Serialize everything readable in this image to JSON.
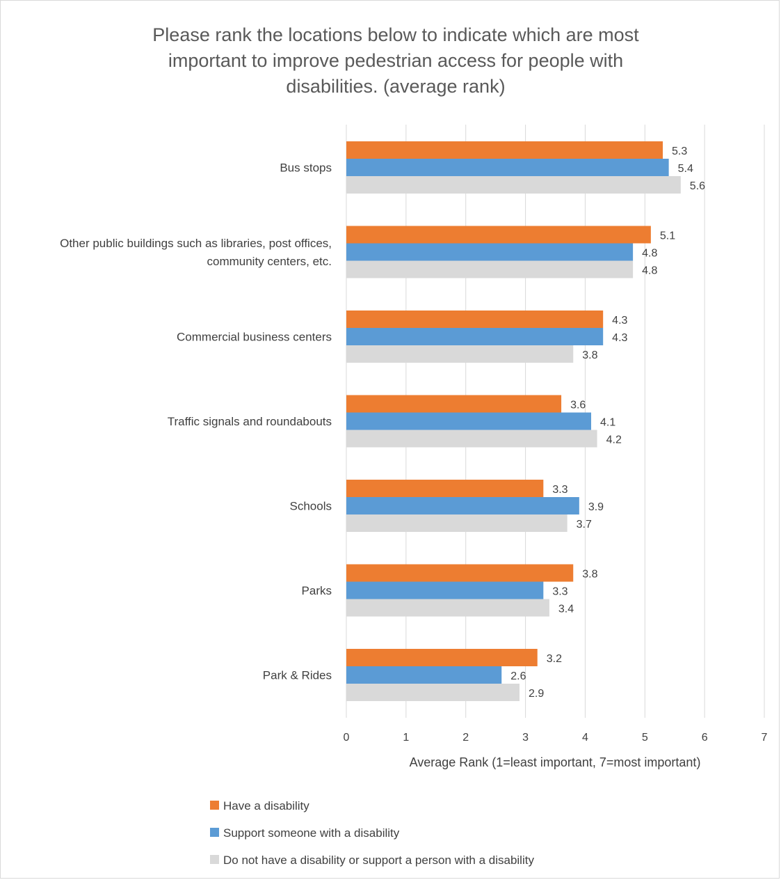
{
  "chart_data": {
    "type": "bar",
    "orientation": "horizontal",
    "title": "Please rank the locations below to indicate which are most important to improve pedestrian access for people with disabilities. (average rank)",
    "title_lines": [
      "Please rank the locations below to indicate which are most",
      "important to improve pedestrian access for people with",
      "disabilities. (average rank)"
    ],
    "xlabel": "Average Rank (1=least important, 7=most important)",
    "ylabel": "",
    "xlim": [
      0,
      7
    ],
    "xticks": [
      "0",
      "1",
      "2",
      "3",
      "4",
      "5",
      "6",
      "7"
    ],
    "grid": true,
    "legend_position": "bottom-left",
    "categories": [
      "Bus stops",
      "Other public buildings such as libraries, post offices, community centers, etc.",
      "Commercial business centers",
      "Traffic signals and roundabouts",
      "Schools",
      "Parks",
      "Park & Rides"
    ],
    "category_lines": [
      [
        "Bus stops"
      ],
      [
        "Other public buildings such as libraries, post offices,",
        "community centers, etc."
      ],
      [
        "Commercial business centers"
      ],
      [
        "Traffic signals and roundabouts"
      ],
      [
        "Schools"
      ],
      [
        "Parks"
      ],
      [
        "Park & Rides"
      ]
    ],
    "series": [
      {
        "name": "Have a disability",
        "color": "#ED7D31",
        "values": [
          5.3,
          5.1,
          4.3,
          3.6,
          3.3,
          3.8,
          3.2
        ],
        "labels": [
          "5.3",
          "5.1",
          "4.3",
          "3.6",
          "3.3",
          "3.8",
          "3.2"
        ]
      },
      {
        "name": "Support someone with a disability",
        "color": "#5B9BD5",
        "values": [
          5.4,
          4.8,
          4.3,
          4.1,
          3.9,
          3.3,
          2.6
        ],
        "labels": [
          "5.4",
          "4.8",
          "4.3",
          "4.1",
          "3.9",
          "3.3",
          "2.6"
        ]
      },
      {
        "name": "Do not have a disability or support a person with a disability",
        "color": "#D9D9D9",
        "values": [
          5.6,
          4.8,
          3.8,
          4.2,
          3.7,
          3.4,
          2.9
        ],
        "labels": [
          "5.6",
          "4.8",
          "3.8",
          "4.2",
          "3.7",
          "3.4",
          "2.9"
        ]
      }
    ]
  }
}
